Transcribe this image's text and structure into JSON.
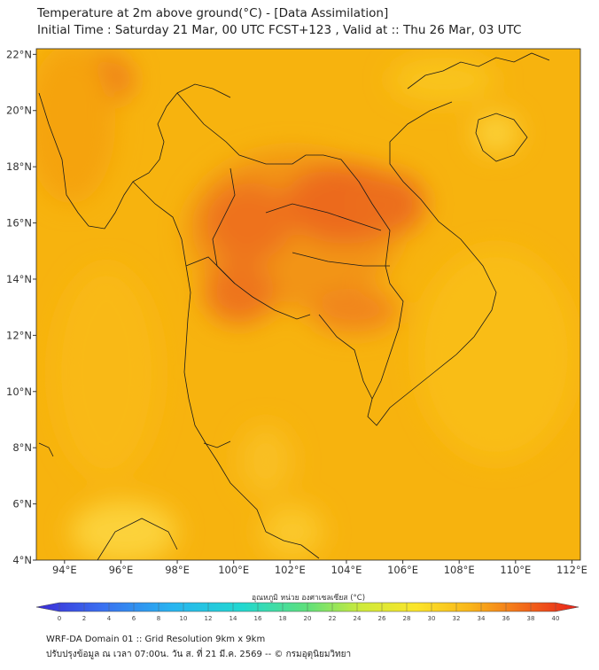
{
  "title": {
    "line1": "Temperature at 2m above ground(°C) - [Data Assimilation]",
    "line2": "Initial Time : Saturday 21 Mar, 00 UTC FCST+123 , Valid at :: Thu 26 Mar, 03 UTC"
  },
  "map": {
    "lon_ticks": [
      "94°E",
      "96°E",
      "98°E",
      "100°E",
      "102°E",
      "104°E",
      "106°E",
      "108°E",
      "110°E",
      "112°E"
    ],
    "lat_ticks": [
      "22°N",
      "20°N",
      "18°N",
      "16°N",
      "14°N",
      "12°N",
      "10°N",
      "8°N",
      "6°N",
      "4°N"
    ],
    "lon_values": [
      94,
      96,
      98,
      100,
      102,
      104,
      106,
      108,
      110,
      112
    ],
    "lat_values": [
      22,
      20,
      18,
      16,
      14,
      12,
      10,
      8,
      6,
      4
    ],
    "lon_range": [
      93,
      112.3
    ],
    "lat_range": [
      4,
      22.2
    ],
    "colors": {
      "background_field": "#f7b30e",
      "hot": "#ee6a1c",
      "warm": "#f48e14",
      "cool": "#fcd23a",
      "border": "#1a1a1a"
    }
  },
  "colorbar": {
    "title": "อุณหภูมิ หน่วย องศาเซลเซียส (°C)",
    "ticks": [
      "0",
      "2",
      "4",
      "6",
      "8",
      "10",
      "12",
      "14",
      "16",
      "18",
      "20",
      "22",
      "24",
      "26",
      "28",
      "30",
      "32",
      "34",
      "36",
      "38",
      "40"
    ],
    "min": 0,
    "max": 40
  },
  "footer": {
    "line1": "WRF-DA Domain 01 :: Grid Resolution 9km x 9km",
    "line2": "ปรับปรุงข้อมูล ณ เวลา 07:00น. วัน ส. ที่ 21 มี.ค. 2569 -- © กรมอุตุนิยมวิทยา"
  }
}
